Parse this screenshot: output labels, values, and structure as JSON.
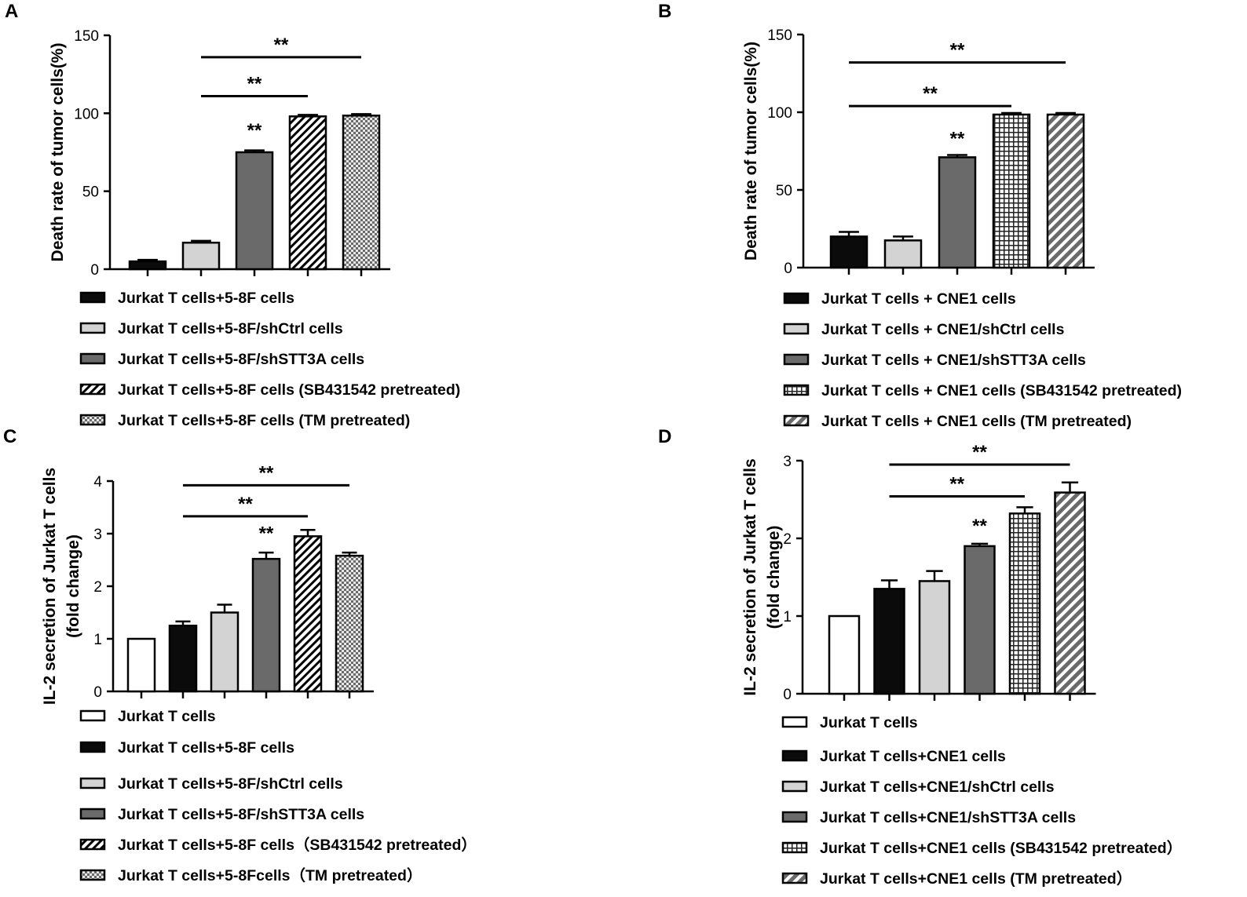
{
  "chart_data": [
    {
      "panel": "A",
      "type": "bar",
      "ylabel": "Death rate of tumor cells(%)",
      "ylim": [
        0,
        150
      ],
      "yticks": [
        0,
        50,
        100,
        150
      ],
      "categories": [
        "Jurkat T cells+5-8F cells",
        "Jurkat T cells+5-8F/shCtrl cells",
        "Jurkat T cells+5-8F/shSTT3A cells",
        "Jurkat T cells+5-8F cells (SB431542 pretreated)",
        "Jurkat T cells+5-8F cells (TM pretreated)"
      ],
      "values": [
        5,
        17,
        75,
        98,
        98.5
      ],
      "errors": [
        1,
        1.2,
        1.2,
        1,
        1
      ],
      "fills": [
        "black",
        "lightgray",
        "darkgray",
        "diagonal",
        "checker"
      ],
      "significance": [
        {
          "from": 2,
          "to": 3,
          "y": 81,
          "label": "**"
        },
        {
          "from": 1,
          "to": 4,
          "y": 111,
          "label": "**"
        },
        {
          "from": 1,
          "to": 5,
          "y": 136,
          "label": "**"
        }
      ]
    },
    {
      "panel": "B",
      "type": "bar",
      "ylabel": "Death rate of tumor cells(%)",
      "ylim": [
        0,
        150
      ],
      "yticks": [
        0,
        50,
        100,
        150
      ],
      "categories": [
        "Jurkat T cells + CNE1 cells",
        "Jurkat T cells + CNE1/shCtrl cells",
        "Jurkat T cells + CNE1/shSTT3A cells",
        "Jurkat T cells + CNE1 cells (SB431542 pretreated)",
        "Jurkat T cells + CNE1 cells (TM pretreated)"
      ],
      "values": [
        20,
        17.5,
        71,
        98.5,
        98.5
      ],
      "errors": [
        3,
        2.5,
        1.5,
        1,
        1
      ],
      "fills": [
        "black",
        "lightgray",
        "darkgray",
        "grid",
        "diagonal-gray"
      ],
      "significance": [
        {
          "from": 2,
          "to": 3,
          "y": 75,
          "label": "**"
        },
        {
          "from": 0,
          "to": 4,
          "y": 104,
          "label": "**"
        },
        {
          "from": 0,
          "to": 5,
          "y": 132,
          "label": "**"
        }
      ]
    },
    {
      "panel": "C",
      "type": "bar",
      "ylabel": "IL-2 secretion of Jurkat T cells",
      "ylabel2": "(fold change)",
      "ylim": [
        0,
        4
      ],
      "yticks": [
        0,
        1,
        2,
        3,
        4
      ],
      "categories": [
        "Jurkat T cells",
        "Jurkat T cells+5-8F cells",
        "Jurkat T cells+5-8F/shCtrl cells",
        "Jurkat T cells+5-8F/shSTT3A cells",
        "Jurkat T cells+5-8F cells（SB431542 pretreated）",
        "Jurkat T cells+5-8Fcells（TM pretreated）"
      ],
      "values": [
        1,
        1.25,
        1.5,
        2.52,
        2.95,
        2.58
      ],
      "errors": [
        0,
        0.08,
        0.15,
        0.12,
        0.12,
        0.06
      ],
      "fills": [
        "white",
        "black",
        "lightgray",
        "darkgray",
        "diagonal",
        "checker"
      ],
      "significance": [
        {
          "from": 3,
          "to": 4,
          "y": 2.77,
          "label": "**"
        },
        {
          "from": 1,
          "to": 5,
          "y": 3.33,
          "label": "**"
        },
        {
          "from": 1,
          "to": 6,
          "y": 3.92,
          "label": "**"
        }
      ]
    },
    {
      "panel": "D",
      "type": "bar",
      "ylabel": "IL-2 secretion of Jurkat T cells",
      "ylabel2": "(fold change)",
      "ylim": [
        0,
        3
      ],
      "yticks": [
        0,
        1,
        2,
        3
      ],
      "categories": [
        "Jurkat T cells",
        "Jurkat T cells+CNE1 cells",
        "Jurkat T cells+CNE1/shCtrl cells",
        "Jurkat T cells+CNE1/shSTT3A cells",
        "Jurkat T cells+CNE1 cells (SB431542 pretreated）",
        "Jurkat T cells+CNE1 cells (TM pretreated）"
      ],
      "values": [
        1,
        1.35,
        1.45,
        1.9,
        2.32,
        2.59
      ],
      "errors": [
        0,
        0.11,
        0.13,
        0.03,
        0.08,
        0.13
      ],
      "fills": [
        "white",
        "black",
        "lightgray",
        "darkgray",
        "grid",
        "diagonal-gray"
      ],
      "significance": [
        {
          "from": 3,
          "to": 4,
          "y": 2.0,
          "label": "**"
        },
        {
          "from": 1,
          "to": 5,
          "y": 2.54,
          "label": "**"
        },
        {
          "from": 1,
          "to": 6,
          "y": 2.95,
          "label": "**"
        }
      ]
    }
  ]
}
